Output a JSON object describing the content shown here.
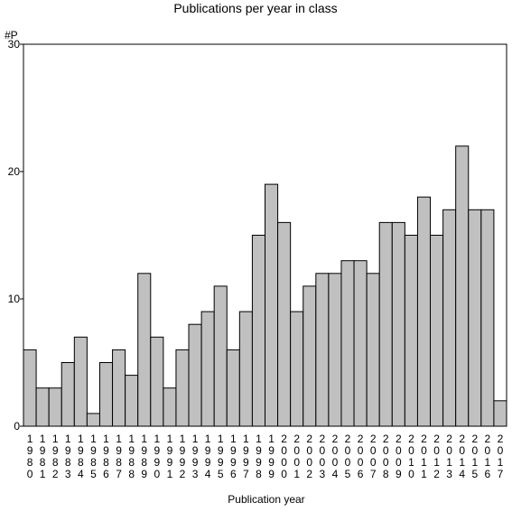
{
  "chart_data": {
    "type": "bar",
    "title": "Publications per year in class",
    "xlabel": "Publication year",
    "ylabel": "#P",
    "ylim": [
      0,
      30
    ],
    "yticks": [
      0,
      10,
      20,
      30
    ],
    "grid": false,
    "categories": [
      "1980",
      "1981",
      "1982",
      "1983",
      "1984",
      "1985",
      "1986",
      "1987",
      "1988",
      "1989",
      "1990",
      "1991",
      "1992",
      "1993",
      "1994",
      "1995",
      "1996",
      "1997",
      "1998",
      "1999",
      "2000",
      "2001",
      "2002",
      "2003",
      "2004",
      "2005",
      "2006",
      "2007",
      "2008",
      "2009",
      "2010",
      "2011",
      "2012",
      "2013",
      "2014",
      "2015",
      "2016",
      "2017"
    ],
    "values": [
      6,
      3,
      3,
      5,
      7,
      1,
      5,
      6,
      4,
      12,
      7,
      3,
      6,
      8,
      9,
      11,
      6,
      9,
      15,
      19,
      16,
      9,
      11,
      12,
      12,
      13,
      13,
      12,
      16,
      16,
      15,
      18,
      15,
      17,
      22,
      17,
      17,
      2
    ]
  }
}
